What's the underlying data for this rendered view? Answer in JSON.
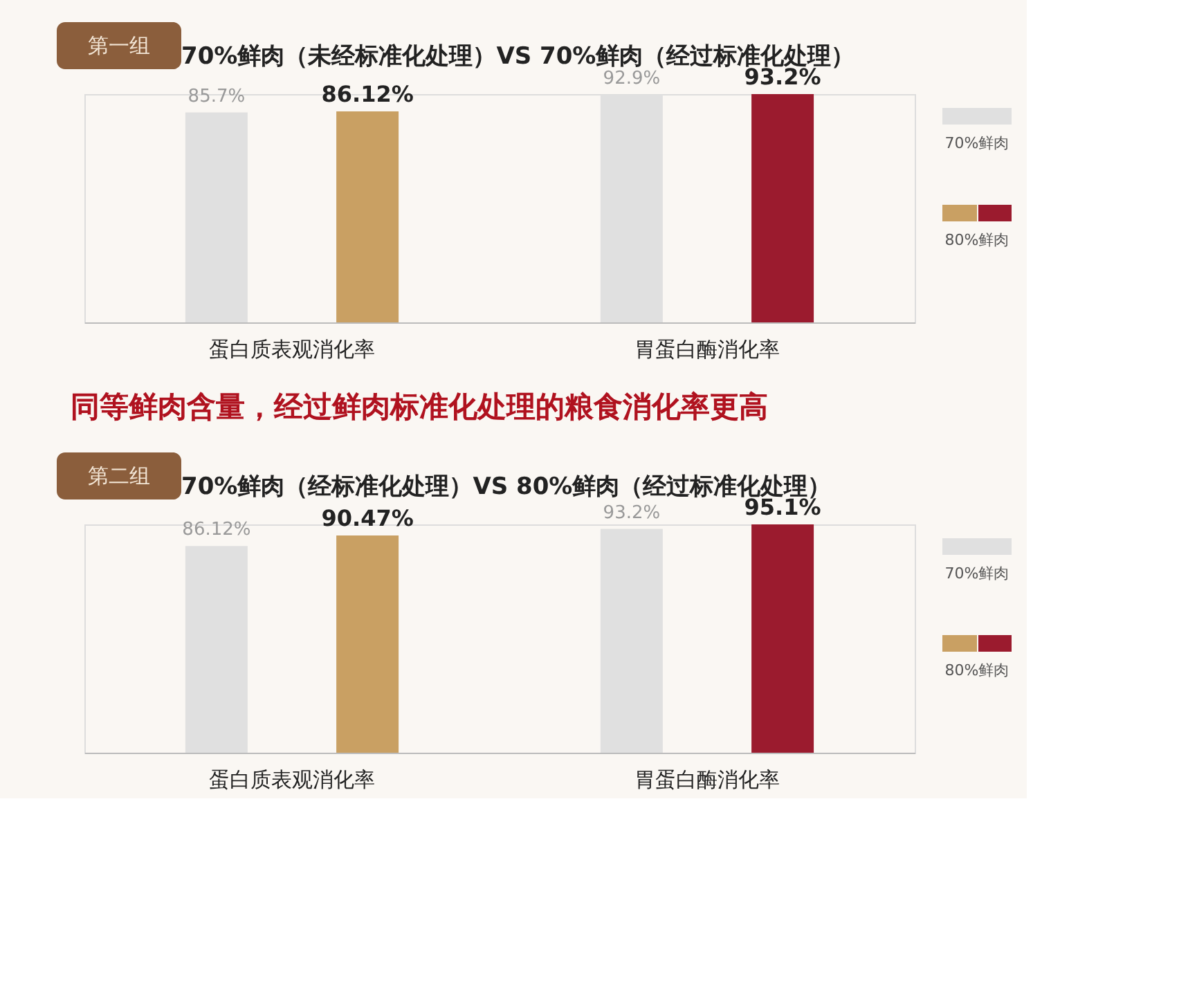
{
  "chart_data": [
    {
      "type": "bar",
      "title": "70%鲜肉（未经标准化处理）VS   70%鲜肉（经过标准化处理）",
      "annotations": [
        "第一组",
        "同等鲜肉含量，经过鲜肉标准化处理的粮食消化率更高"
      ],
      "categories": [
        "蛋白质表观消化率",
        "胃蛋白酶消化率"
      ],
      "legend": "right",
      "series": [
        {
          "name": "70%鲜肉",
          "color": "#e0e0e0",
          "values": [
            85.7,
            92.9
          ],
          "value_labels": [
            "85.7%",
            "92.9%"
          ]
        },
        {
          "name": "80%鲜肉",
          "colors": [
            "#c9a063",
            "#9b1b2e"
          ],
          "values": [
            86.12,
            93.2
          ],
          "value_labels": [
            "86.12%",
            "93.2%"
          ]
        }
      ]
    },
    {
      "type": "bar",
      "title": "70%鲜肉（经标准化处理）VS   80%鲜肉（经过标准化处理）",
      "annotations": [
        "第二组"
      ],
      "categories": [
        "蛋白质表观消化率",
        "胃蛋白酶消化率"
      ],
      "legend": "right",
      "series": [
        {
          "name": "70%鲜肉",
          "color": "#e0e0e0",
          "values": [
            86.12,
            93.2
          ],
          "value_labels": [
            "86.12%",
            "93.2%"
          ]
        },
        {
          "name": "80%鲜肉",
          "colors": [
            "#c9a063",
            "#9b1b2e"
          ],
          "values": [
            90.47,
            95.1
          ],
          "value_labels": [
            "90.47%",
            "95.1%"
          ]
        }
      ]
    }
  ]
}
